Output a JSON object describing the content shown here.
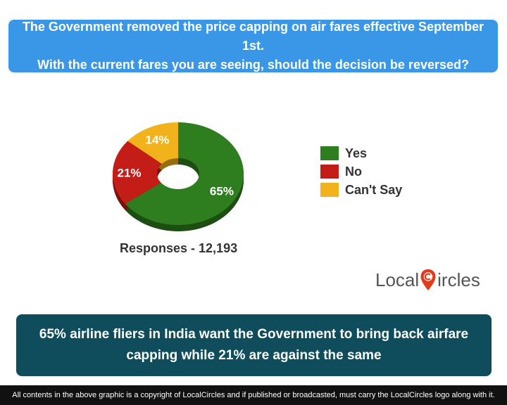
{
  "header": {
    "question_line1": "The Government removed the price capping on air fares effective September 1st.",
    "question_line2": "With the current fares you are seeing, should the decision be reversed?"
  },
  "chart_data": {
    "type": "pie",
    "categories": [
      "Yes",
      "No",
      "Can't Say"
    ],
    "values": [
      65,
      21,
      14
    ],
    "value_labels": [
      "65%",
      "21%",
      "14%"
    ],
    "colors": [
      "#2e7d1f",
      "#c41c16",
      "#f2b21b"
    ],
    "legend_placement": "right"
  },
  "responses_text": "Responses - 12,193",
  "logo": {
    "text_before": "Local",
    "text_after": "ircles"
  },
  "summary": "65% airline fliers in India want the Government to bring back airfare capping while 21% are against the same",
  "footer": "All contents in the above graphic is a copyright of LocalCircles and if published or broadcasted, must carry the LocalCircles logo along with it."
}
